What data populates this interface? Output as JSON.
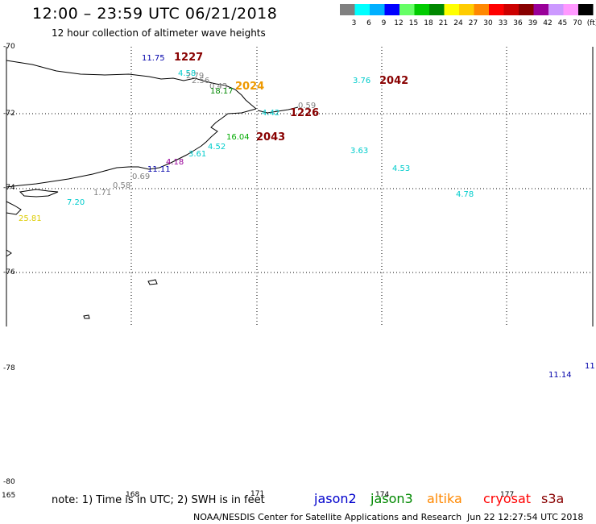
{
  "title": "12:00 – 23:59 UTC 06/21/2018",
  "subtitle": "12 hour collection of altimeter wave heights",
  "legend": {
    "colors": [
      "#808080",
      "#00ffff",
      "#00b0ff",
      "#0000ff",
      "#66ff66",
      "#00cc00",
      "#008800",
      "#ffff00",
      "#ffcc00",
      "#ff8800",
      "#ff0000",
      "#cc0000",
      "#880000",
      "#990099",
      "#cc99ff",
      "#ff99ff",
      "#000000"
    ],
    "labels": [
      "3",
      "6",
      "9",
      "12",
      "15",
      "18",
      "21",
      "24",
      "27",
      "30",
      "33",
      "36",
      "39",
      "42",
      "45",
      "70",
      "(ft)"
    ]
  },
  "lat_labels": [
    "-70",
    "-72",
    "-74",
    "-76",
    "-78",
    "-80"
  ],
  "lon_labels": [
    "165",
    "168",
    "171",
    "174",
    "177"
  ],
  "observations": [
    {
      "v": "11.75",
      "c": "#0000aa"
    },
    {
      "v": "4.58",
      "c": "#00cccc"
    },
    {
      "v": "2.79",
      "c": "#808080"
    },
    {
      "v": "2.56",
      "c": "#808080"
    },
    {
      "v": "0.43",
      "c": "#808080"
    },
    {
      "v": "18.17",
      "c": "#008800"
    },
    {
      "v": "3.76",
      "c": "#00cccc"
    },
    {
      "v": "0.59",
      "c": "#808080"
    },
    {
      "v": "4.42",
      "c": "#00cccc"
    },
    {
      "v": "16.04",
      "c": "#00aa00"
    },
    {
      "v": "4.52",
      "c": "#00cccc"
    },
    {
      "v": "3.61",
      "c": "#00cccc"
    },
    {
      "v": "3.63",
      "c": "#00cccc"
    },
    {
      "v": "4.53",
      "c": "#00cccc"
    },
    {
      "v": "4.18",
      "c": "#990099"
    },
    {
      "v": "11.11",
      "c": "#0000aa"
    },
    {
      "v": "0.69",
      "c": "#808080"
    },
    {
      "v": "0.58",
      "c": "#808080"
    },
    {
      "v": "1.71",
      "c": "#808080"
    },
    {
      "v": "4.78",
      "c": "#00cccc"
    },
    {
      "v": "7.20",
      "c": "#00cccc"
    },
    {
      "v": "25.81",
      "c": "#ddcc00"
    },
    {
      "v": "11.14",
      "c": "#0000aa"
    },
    {
      "v": "11",
      "c": "#0000aa"
    }
  ],
  "times": [
    {
      "v": "1227",
      "c": "#880000"
    },
    {
      "v": "2024",
      "c": "#ee9900"
    },
    {
      "v": "2042",
      "c": "#880000"
    },
    {
      "v": "1226",
      "c": "#880000"
    },
    {
      "v": "2043",
      "c": "#880000"
    }
  ],
  "note": "note:  1) Time is in UTC; 2) SWH is in feet",
  "satellites": [
    {
      "name": "jason2",
      "c": "#0000cc"
    },
    {
      "name": "jason3",
      "c": "#008800"
    },
    {
      "name": "altika",
      "c": "#ff8800"
    },
    {
      "name": "cryosat",
      "c": "#ff0000"
    },
    {
      "name": "s3a",
      "c": "#880000"
    }
  ],
  "credit": "NOAA/NESDIS Center for Satellite Applications and Research",
  "stamp": "Jun 22 12:27:54 UTC 2018"
}
